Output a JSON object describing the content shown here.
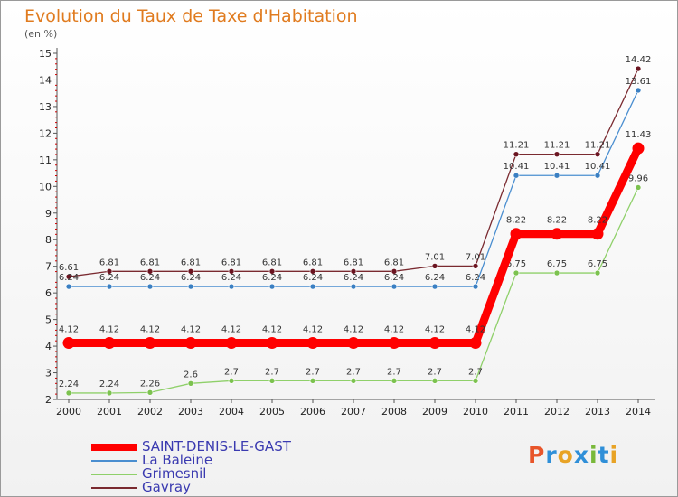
{
  "title": "Evolution du Taux de Taxe d'Habitation",
  "unit_label": "(en %)",
  "logo_text": "Proxiti",
  "logo_colors": [
    "#e8552a",
    "#2f8fd8",
    "#e8a325",
    "#2f8fd8",
    "#79b83a",
    "#2f8fd8",
    "#e8a325"
  ],
  "chart_data": {
    "type": "line",
    "title": "Evolution du Taux de Taxe d'Habitation",
    "ylabel": "(en %)",
    "xlabel": "",
    "x": [
      "2000",
      "2001",
      "2002",
      "2003",
      "2004",
      "2005",
      "2006",
      "2007",
      "2008",
      "2009",
      "2010",
      "2011",
      "2012",
      "2013",
      "2014"
    ],
    "ylim": [
      2,
      15
    ],
    "yticks": [
      "2",
      "3",
      "4",
      "5",
      "6",
      "7",
      "8",
      "9",
      "10",
      "11",
      "12",
      "13",
      "14",
      "15"
    ],
    "grid": false,
    "legend_position": "bottom-left",
    "series": [
      {
        "name": "Gavray",
        "color": "#7a2a30",
        "marker": "#6b1420",
        "values": [
          6.61,
          6.81,
          6.81,
          6.81,
          6.81,
          6.81,
          6.81,
          6.81,
          6.81,
          7.01,
          7.01,
          11.21,
          11.21,
          11.21,
          14.42
        ],
        "labels": [
          "6.61",
          "6.81",
          "6.81",
          "6.81",
          "6.81",
          "6.81",
          "6.81",
          "6.81",
          "6.81",
          "7.01",
          "7.01",
          "11.21",
          "11.21",
          "11.21",
          "14.42"
        ]
      },
      {
        "name": "La Baleine",
        "color": "#4a8ed0",
        "marker": "#3a7fc2",
        "values": [
          6.24,
          6.24,
          6.24,
          6.24,
          6.24,
          6.24,
          6.24,
          6.24,
          6.24,
          6.24,
          6.24,
          10.41,
          10.41,
          10.41,
          13.61
        ],
        "labels": [
          "6.24",
          "6.24",
          "6.24",
          "6.24",
          "6.24",
          "6.24",
          "6.24",
          "6.24",
          "6.24",
          "6.24",
          "6.24",
          "10.41",
          "10.41",
          "10.41",
          "13.61"
        ]
      },
      {
        "name": "Grimesnil",
        "color": "#8fd06a",
        "marker": "#7cc24f",
        "values": [
          2.24,
          2.24,
          2.26,
          2.6,
          2.7,
          2.7,
          2.7,
          2.7,
          2.7,
          2.7,
          2.7,
          6.75,
          6.75,
          6.75,
          9.96
        ],
        "labels": [
          "2.24",
          "2.24",
          "2.26",
          "2.6",
          "2.7",
          "2.7",
          "2.7",
          "2.7",
          "2.7",
          "2.7",
          "2.7",
          "6.75",
          "6.75",
          "6.75",
          "9.96"
        ]
      },
      {
        "name": "SAINT-DENIS-LE-GAST",
        "color": "#ff0000",
        "marker": "#ff0000",
        "values": [
          4.12,
          4.12,
          4.12,
          4.12,
          4.12,
          4.12,
          4.12,
          4.12,
          4.12,
          4.12,
          4.12,
          8.22,
          8.22,
          8.22,
          11.43
        ],
        "labels": [
          "4.12",
          "4.12",
          "4.12",
          "4.12",
          "4.12",
          "4.12",
          "4.12",
          "4.12",
          "4.12",
          "4.12",
          "4.12",
          "8.22",
          "8.22",
          "8.22",
          "11.43"
        ]
      }
    ],
    "legend_order": [
      "SAINT-DENIS-LE-GAST",
      "La Baleine",
      "Grimesnil",
      "Gavray"
    ]
  }
}
